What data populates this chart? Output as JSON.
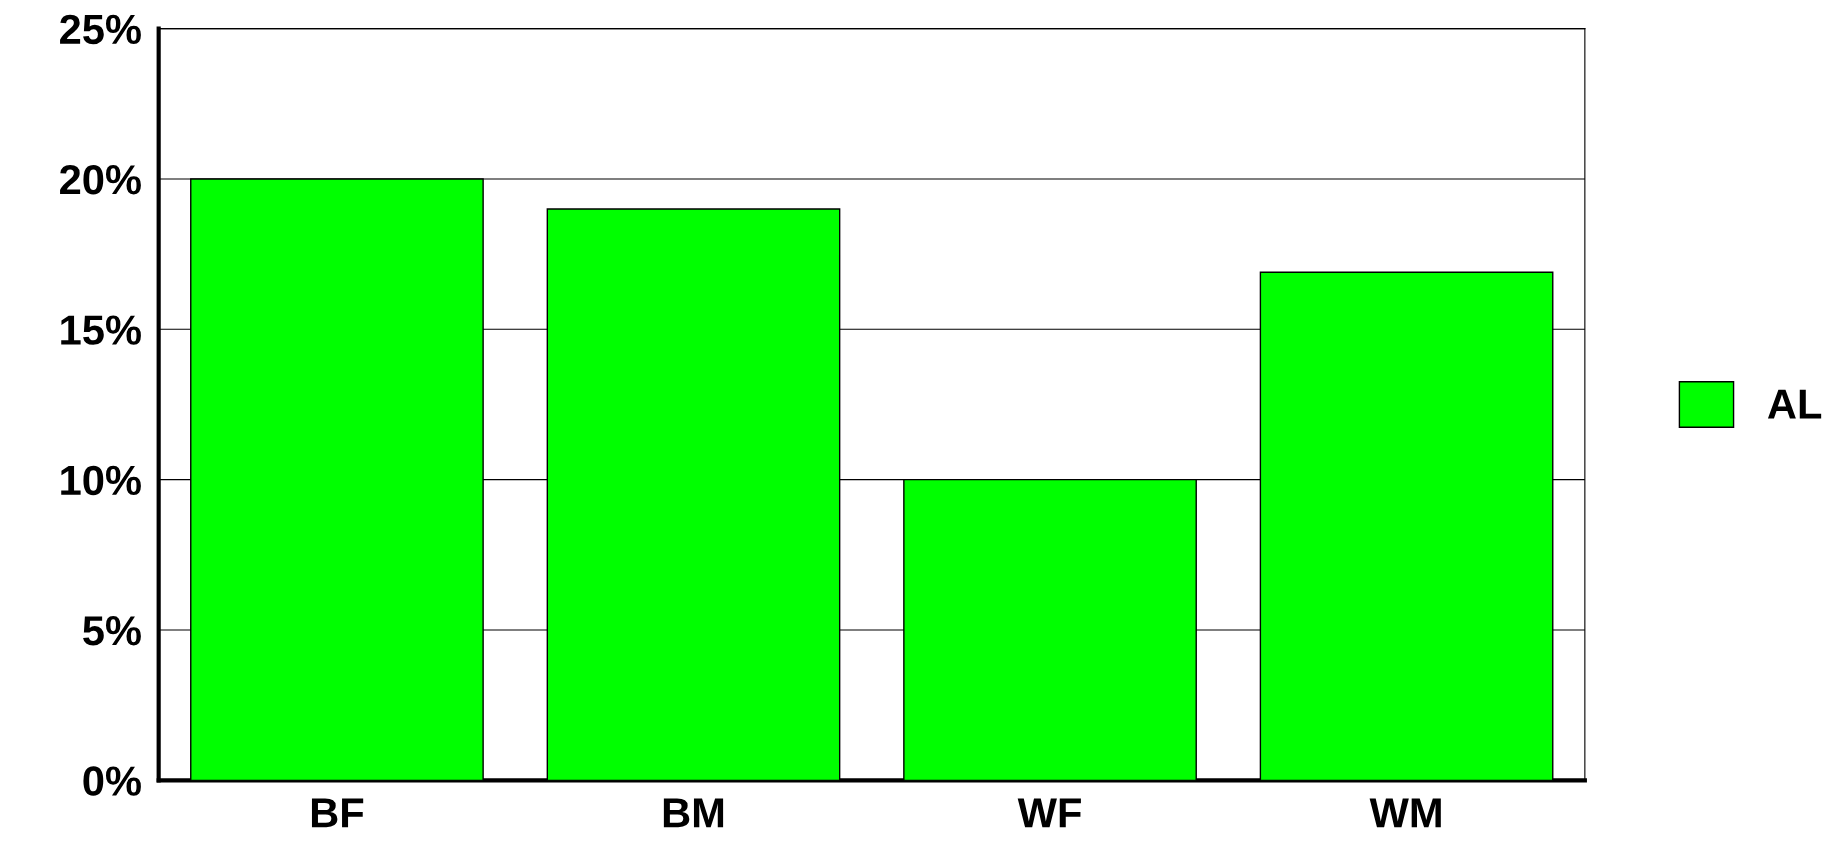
{
  "chart_data": {
    "type": "bar",
    "categories": [
      "BF",
      "BM",
      "WF",
      "WM"
    ],
    "series": [
      {
        "name": "AL",
        "color": "#00ff00",
        "values": [
          20,
          19,
          10,
          16.9
        ]
      }
    ],
    "ylim": [
      0,
      25
    ],
    "yticks": [
      {
        "value": 0,
        "label": "0%"
      },
      {
        "value": 5,
        "label": "5%"
      },
      {
        "value": 10,
        "label": "10%"
      },
      {
        "value": 15,
        "label": "15%"
      },
      {
        "value": 20,
        "label": "20%"
      },
      {
        "value": 25,
        "label": "25%"
      }
    ],
    "grid": "y",
    "legend": "right"
  }
}
